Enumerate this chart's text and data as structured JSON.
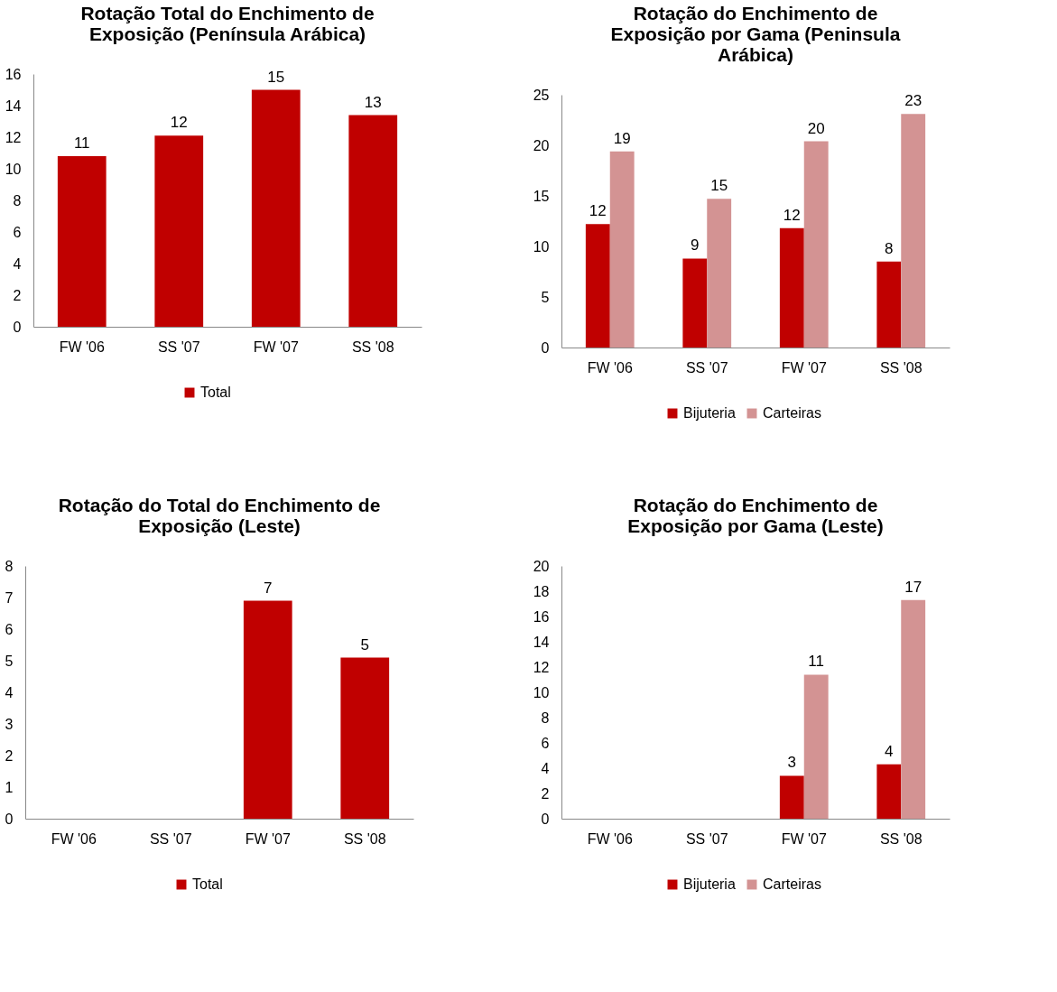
{
  "chart_data": [
    {
      "type": "bar",
      "title": "Rotação Total do Enchimento de Exposição (Península Arábica)",
      "categories": [
        "FW '06",
        "SS '07",
        "FW '07",
        "SS '08"
      ],
      "ylim": [
        0,
        16
      ],
      "yticks": [
        0,
        2,
        4,
        6,
        8,
        10,
        12,
        14,
        16
      ],
      "grid": false,
      "legend": "bottom",
      "series": [
        {
          "name": "Total",
          "color": "#c00000",
          "values": [
            10.8,
            12.1,
            15.0,
            13.4
          ],
          "value_labels": [
            "11",
            "12",
            "15",
            "13"
          ]
        }
      ]
    },
    {
      "type": "bar",
      "title": "Rotação do Enchimento de Exposição por Gama (Peninsula Arábica)",
      "categories": [
        "FW '06",
        "SS '07",
        "FW '07",
        "SS '08"
      ],
      "ylim": [
        0,
        25
      ],
      "yticks": [
        0,
        5,
        10,
        15,
        20,
        25
      ],
      "grid": false,
      "legend": "bottom",
      "series": [
        {
          "name": "Bijuteria",
          "color": "#c00000",
          "values": [
            12.2,
            8.8,
            11.8,
            8.5
          ],
          "value_labels": [
            "12",
            "9",
            "12",
            "8"
          ]
        },
        {
          "name": "Carteiras",
          "color": "#d39393",
          "values": [
            19.4,
            14.7,
            20.4,
            23.1
          ],
          "value_labels": [
            "19",
            "15",
            "20",
            "23"
          ]
        }
      ]
    },
    {
      "type": "bar",
      "title": "Rotação do Total do Enchimento de Exposição (Leste)",
      "categories": [
        "FW '06",
        "SS '07",
        "FW '07",
        "SS '08"
      ],
      "ylim": [
        0,
        8
      ],
      "yticks": [
        0,
        1,
        2,
        3,
        4,
        5,
        6,
        7,
        8
      ],
      "grid": false,
      "legend": "bottom",
      "series": [
        {
          "name": "Total",
          "color": "#c00000",
          "values": [
            null,
            null,
            6.9,
            5.1
          ],
          "value_labels": [
            null,
            null,
            "7",
            "5"
          ]
        }
      ]
    },
    {
      "type": "bar",
      "title": "Rotação do Enchimento de Exposição por Gama (Leste)",
      "categories": [
        "FW '06",
        "SS '07",
        "FW '07",
        "SS '08"
      ],
      "ylim": [
        0,
        20
      ],
      "yticks": [
        0,
        2,
        4,
        6,
        8,
        10,
        12,
        14,
        16,
        18,
        20
      ],
      "grid": false,
      "legend": "bottom",
      "series": [
        {
          "name": "Bijuteria",
          "color": "#c00000",
          "values": [
            null,
            null,
            3.4,
            4.3
          ],
          "value_labels": [
            null,
            null,
            "3",
            "4"
          ]
        },
        {
          "name": "Carteiras",
          "color": "#d39393",
          "values": [
            null,
            null,
            11.4,
            17.3
          ],
          "value_labels": [
            null,
            null,
            "11",
            "17"
          ]
        }
      ]
    }
  ]
}
